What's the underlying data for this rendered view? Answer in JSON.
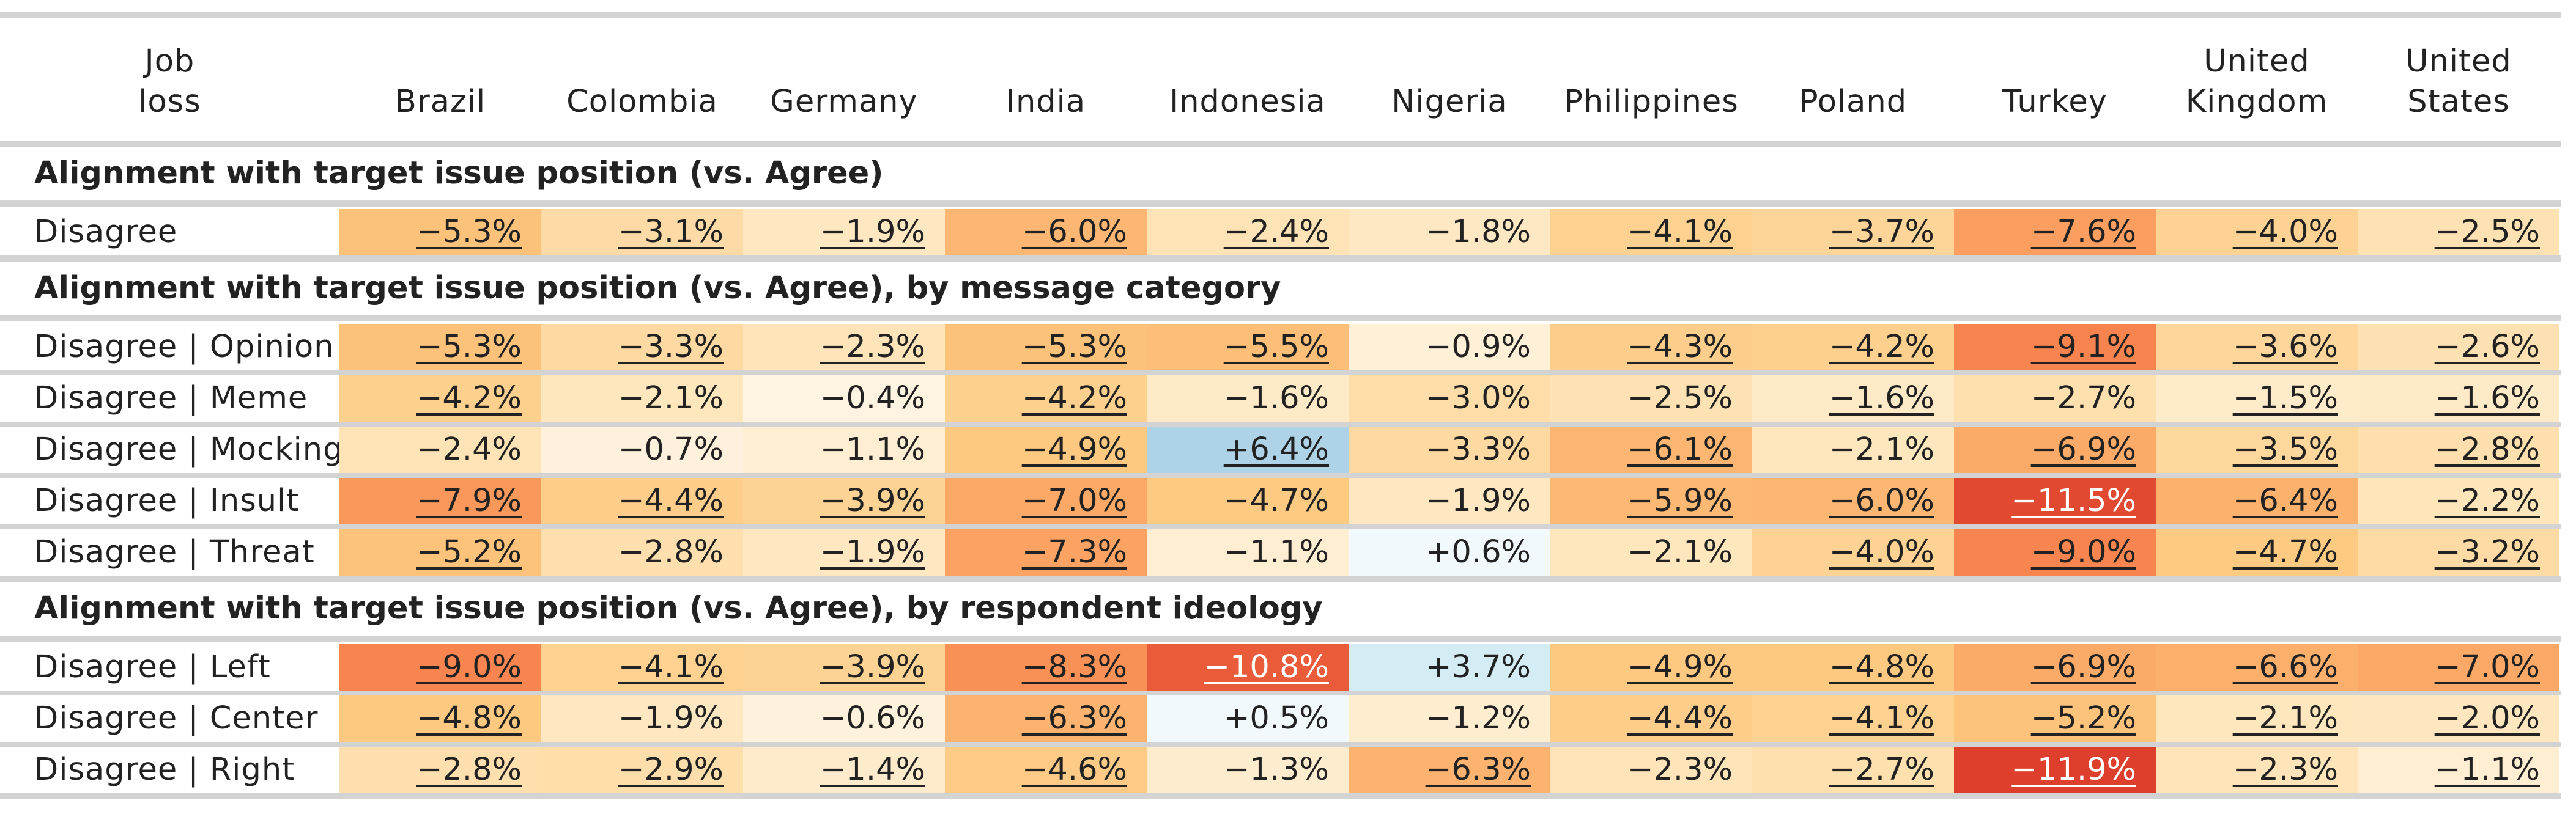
{
  "chart_data": {
    "type": "table",
    "stub_header": "Job\nloss",
    "columns": [
      "Brazil",
      "Colombia",
      "Germany",
      "India",
      "Indonesia",
      "Nigeria",
      "Philippines",
      "Poland",
      "Turkey",
      "United\nKingdom",
      "United\nStates"
    ],
    "groups": [
      {
        "title": "Alignment with target issue position (vs. Agree)",
        "rows": [
          {
            "label": "Disagree",
            "values": [
              "−5.3%",
              "−3.1%",
              "−1.9%",
              "−6.0%",
              "−2.4%",
              "−1.8%",
              "−4.1%",
              "−3.7%",
              "−7.6%",
              "−4.0%",
              "−2.5%"
            ],
            "underlined": [
              true,
              true,
              true,
              true,
              true,
              false,
              true,
              true,
              true,
              true,
              true
            ]
          }
        ]
      },
      {
        "title": "Alignment with target issue position (vs. Agree), by message category",
        "rows": [
          {
            "label": "Disagree | Opinion",
            "values": [
              "−5.3%",
              "−3.3%",
              "−2.3%",
              "−5.3%",
              "−5.5%",
              "−0.9%",
              "−4.3%",
              "−4.2%",
              "−9.1%",
              "−3.6%",
              "−2.6%"
            ],
            "underlined": [
              true,
              true,
              true,
              true,
              true,
              false,
              true,
              true,
              true,
              true,
              true
            ]
          },
          {
            "label": "Disagree | Meme",
            "values": [
              "−4.2%",
              "−2.1%",
              "−0.4%",
              "−4.2%",
              "−1.6%",
              "−3.0%",
              "−2.5%",
              "−1.6%",
              "−2.7%",
              "−1.5%",
              "−1.6%"
            ],
            "underlined": [
              true,
              false,
              false,
              true,
              false,
              false,
              false,
              true,
              false,
              true,
              true
            ]
          },
          {
            "label": "Disagree | Mocking",
            "values": [
              "−2.4%",
              "−0.7%",
              "−1.1%",
              "−4.9%",
              "+6.4%",
              "−3.3%",
              "−6.1%",
              "−2.1%",
              "−6.9%",
              "−3.5%",
              "−2.8%"
            ],
            "underlined": [
              false,
              false,
              false,
              true,
              true,
              false,
              true,
              false,
              true,
              true,
              true
            ]
          },
          {
            "label": "Disagree | Insult",
            "values": [
              "−7.9%",
              "−4.4%",
              "−3.9%",
              "−7.0%",
              "−4.7%",
              "−1.9%",
              "−5.9%",
              "−6.0%",
              "−11.5%",
              "−6.4%",
              "−2.2%"
            ],
            "underlined": [
              true,
              true,
              true,
              true,
              false,
              false,
              true,
              true,
              true,
              true,
              true
            ]
          },
          {
            "label": "Disagree | Threat",
            "values": [
              "−5.2%",
              "−2.8%",
              "−1.9%",
              "−7.3%",
              "−1.1%",
              "+0.6%",
              "−2.1%",
              "−4.0%",
              "−9.0%",
              "−4.7%",
              "−3.2%"
            ],
            "underlined": [
              true,
              false,
              true,
              true,
              false,
              false,
              false,
              true,
              true,
              true,
              true
            ]
          }
        ]
      },
      {
        "title": "Alignment with target issue position (vs. Agree), by respondent ideology",
        "rows": [
          {
            "label": "Disagree | Left",
            "values": [
              "−9.0%",
              "−4.1%",
              "−3.9%",
              "−8.3%",
              "−10.8%",
              "+3.7%",
              "−4.9%",
              "−4.8%",
              "−6.9%",
              "−6.6%",
              "−7.0%"
            ],
            "underlined": [
              true,
              true,
              true,
              true,
              true,
              false,
              true,
              true,
              true,
              true,
              true
            ]
          },
          {
            "label": "Disagree | Center",
            "values": [
              "−4.8%",
              "−1.9%",
              "−0.6%",
              "−6.3%",
              "+0.5%",
              "−1.2%",
              "−4.4%",
              "−4.1%",
              "−5.2%",
              "−2.1%",
              "−2.0%"
            ],
            "underlined": [
              true,
              false,
              false,
              true,
              false,
              false,
              true,
              true,
              true,
              true,
              true
            ]
          },
          {
            "label": "Disagree | Right",
            "values": [
              "−2.8%",
              "−2.9%",
              "−1.4%",
              "−4.6%",
              "−1.3%",
              "−6.3%",
              "−2.3%",
              "−2.7%",
              "−11.9%",
              "−2.3%",
              "−1.1%"
            ],
            "underlined": [
              true,
              true,
              true,
              true,
              false,
              true,
              false,
              true,
              true,
              true,
              true
            ]
          }
        ]
      }
    ],
    "color_scale": {
      "negative_max": -12,
      "positive_max": 7,
      "negative_colors": [
        "#fff7ea",
        "#fee3b6",
        "#fdc980",
        "#fca564",
        "#f67a48",
        "#dd3c2b"
      ],
      "positive_colors": [
        "#f6fbfd",
        "#d7eef5",
        "#a6cde4"
      ],
      "light_text": "#ffffff",
      "dark_text": "#222222"
    }
  }
}
